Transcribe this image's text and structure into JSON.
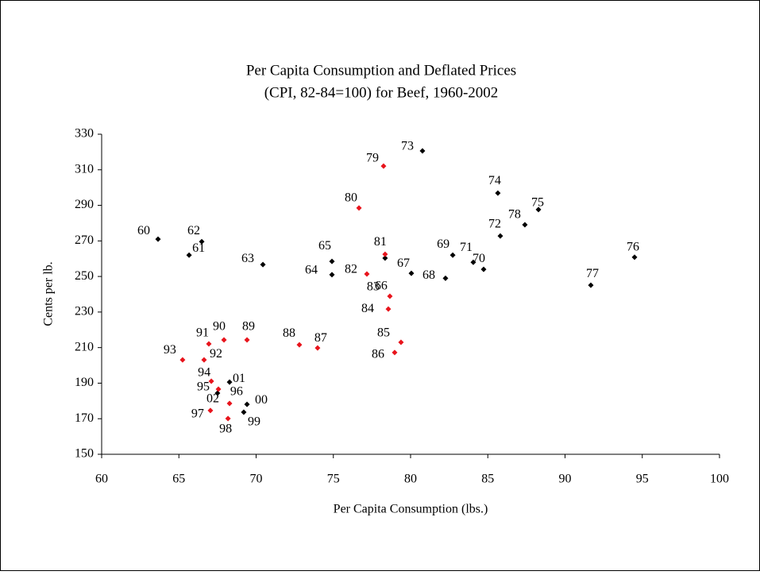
{
  "chart_data": {
    "type": "scatter",
    "title": [
      "Per Capita Consumption and Deflated Prices",
      "(CPI, 82-84=100) for Beef, 1960-2002"
    ],
    "xlabel": "Per Capita Consumption (lbs.)",
    "ylabel": "Cents per lb.",
    "xlim": [
      60,
      100
    ],
    "xticks": [
      60,
      65,
      70,
      75,
      80,
      85,
      90,
      95,
      100
    ],
    "ylim": [
      150,
      330
    ],
    "yticks": [
      150,
      170,
      190,
      210,
      230,
      250,
      270,
      290,
      310,
      330
    ],
    "series": [
      {
        "color": "#000000",
        "labels": [
          "60",
          "61",
          "62",
          "63",
          "64",
          "65",
          "66",
          "67",
          "68",
          "69",
          "70",
          "71",
          "72",
          "73",
          "74",
          "75",
          "76",
          "77",
          "78",
          "00",
          "01",
          "99",
          "96"
        ],
        "x": [
          63.65,
          65.66,
          66.48,
          70.44,
          74.91,
          74.91,
          78.35,
          80.05,
          82.26,
          82.73,
          84.73,
          84.06,
          85.81,
          80.77,
          85.65,
          88.28,
          94.5,
          91.67,
          87.4,
          69.41,
          68.28,
          69.2,
          67.5
        ],
        "values": [
          271,
          262,
          269.6,
          256.7,
          251,
          258.5,
          260.3,
          251.8,
          249,
          262,
          254,
          258,
          272.8,
          320.6,
          296.9,
          287.6,
          260.8,
          245.1,
          279.1,
          178.1,
          190.6,
          173.7,
          184.4
        ]
      },
      {
        "color": "#e8141c",
        "labels": [
          "79",
          "80",
          "81",
          "82",
          "83",
          "84",
          "85",
          "86",
          "87",
          "88",
          "89",
          "90",
          "91",
          "92",
          "93",
          "94",
          "95",
          "02",
          "97",
          "98"
        ],
        "x": [
          78.25,
          76.66,
          78.35,
          77.17,
          78.66,
          78.56,
          79.38,
          78.97,
          73.98,
          72.8,
          69.41,
          67.92,
          66.94,
          66.63,
          65.24,
          67.1,
          67.56,
          68.28,
          67.04,
          68.18
        ],
        "values": [
          312.1,
          288.5,
          262.5,
          251.4,
          238.9,
          231.7,
          213,
          207.2,
          209.8,
          211.6,
          214.3,
          214.3,
          212.1,
          203.1,
          203.1,
          191.1,
          186.6,
          178.6,
          174.6,
          170.1
        ]
      }
    ]
  }
}
